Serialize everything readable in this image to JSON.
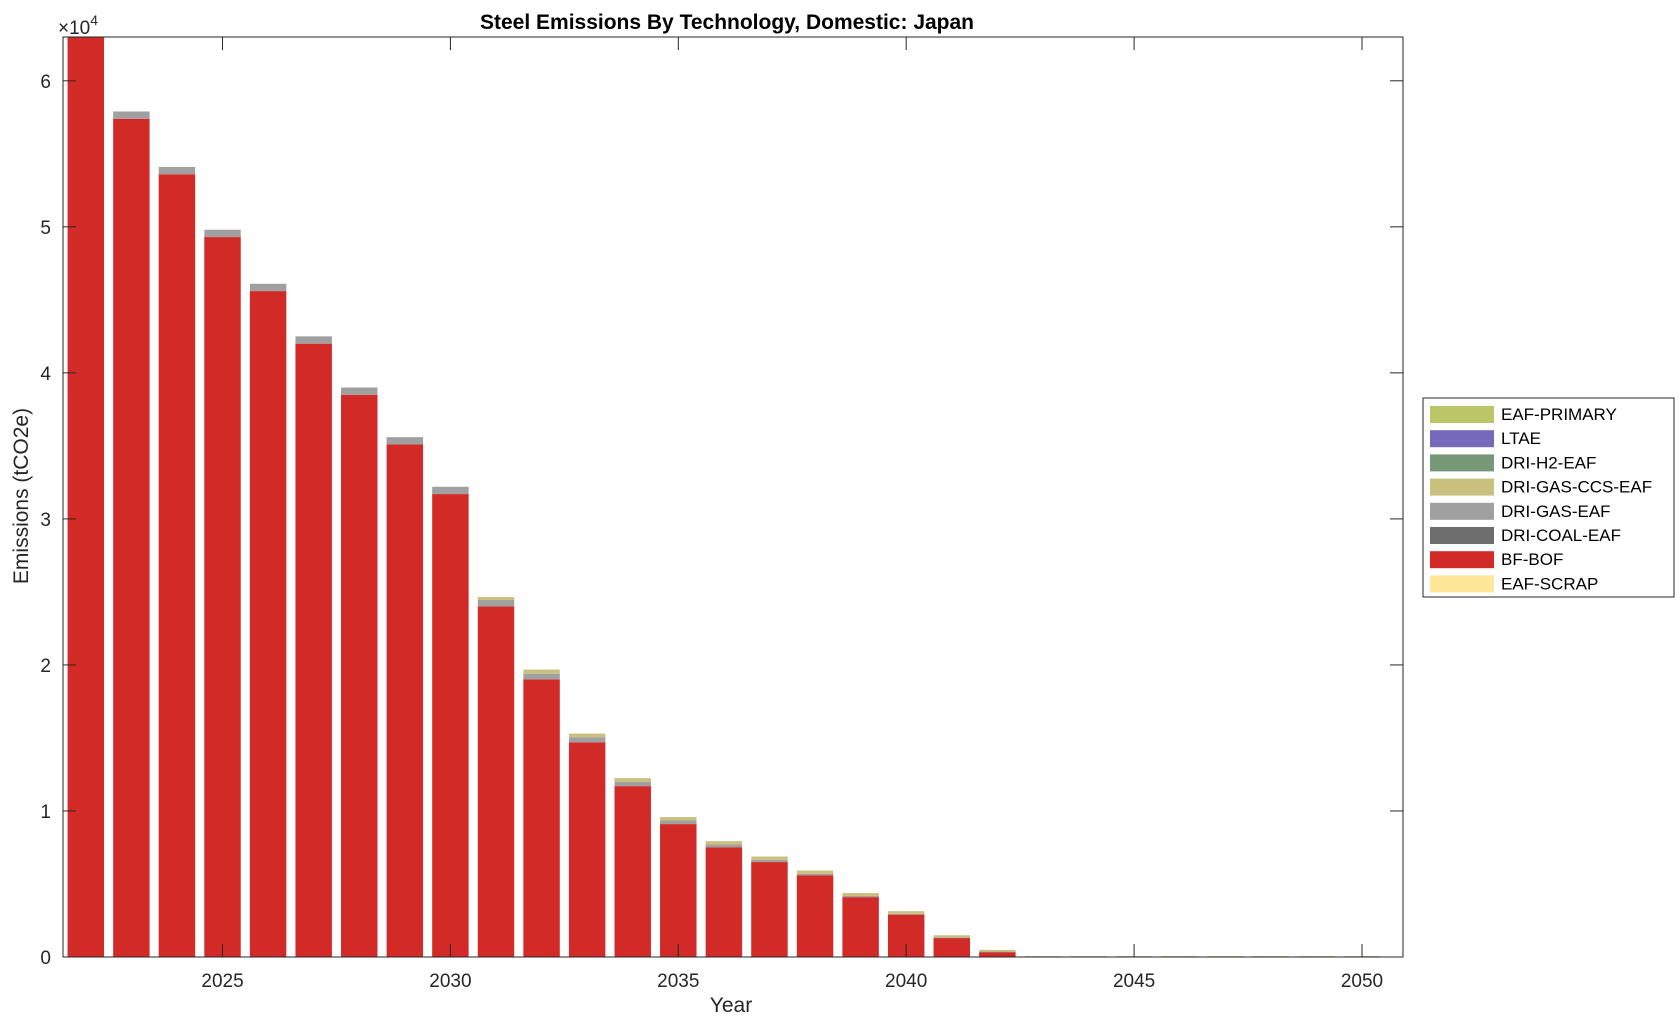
{
  "chart_data": {
    "type": "bar",
    "stacked": true,
    "title": "Steel Emissions By Technology, Domestic: Japan",
    "xlabel": "Year",
    "ylabel": "Emissions (tCO2e)",
    "y_exponent_label": "×10",
    "y_exponent_power": "4",
    "xlim": [
      2021.5,
      2050.9
    ],
    "ylim": [
      0,
      63000
    ],
    "x_ticks": [
      2025,
      2030,
      2035,
      2040,
      2045,
      2050
    ],
    "y_ticks": [
      0,
      10000,
      20000,
      30000,
      40000,
      50000,
      60000
    ],
    "y_tick_labels": [
      "0",
      "1",
      "2",
      "3",
      "4",
      "5",
      "6"
    ],
    "grid": false,
    "legend_position": "outside-right",
    "categories": [
      2022,
      2023,
      2024,
      2025,
      2026,
      2027,
      2028,
      2029,
      2030,
      2031,
      2032,
      2033,
      2034,
      2035,
      2036,
      2037,
      2038,
      2039,
      2040,
      2041,
      2042,
      2043,
      2044,
      2045,
      2046,
      2047,
      2048,
      2049,
      2050
    ],
    "series": [
      {
        "name": "EAF-SCRAP",
        "color": "#FFE699",
        "values": [
          0,
          0,
          0,
          0,
          0,
          0,
          0,
          0,
          0,
          0,
          0,
          0,
          0,
          0,
          0,
          0,
          0,
          0,
          0,
          0,
          0,
          0,
          0,
          0,
          0,
          0,
          0,
          0,
          0
        ]
      },
      {
        "name": "BF-BOF",
        "color": "#D22A26",
        "values": [
          63000,
          57400,
          53600,
          49300,
          45600,
          42000,
          38500,
          35100,
          31700,
          24000,
          19000,
          14700,
          11700,
          9100,
          7500,
          6500,
          5600,
          4100,
          2900,
          1300,
          350,
          0,
          0,
          0,
          0,
          0,
          0,
          0,
          0
        ]
      },
      {
        "name": "DRI-COAL-EAF",
        "color": "#6E6E6E",
        "values": [
          0,
          0,
          0,
          0,
          0,
          0,
          0,
          0,
          0,
          0,
          0,
          0,
          0,
          0,
          0,
          0,
          0,
          0,
          0,
          0,
          0,
          0,
          0,
          0,
          0,
          0,
          0,
          0,
          0
        ]
      },
      {
        "name": "DRI-GAS-EAF",
        "color": "#A0A0A0",
        "values": [
          0,
          500,
          500,
          500,
          500,
          500,
          500,
          500,
          500,
          450,
          400,
          350,
          300,
          250,
          200,
          150,
          100,
          80,
          60,
          40,
          20,
          0,
          0,
          0,
          0,
          0,
          0,
          0,
          0
        ]
      },
      {
        "name": "DRI-GAS-CCS-EAF",
        "color": "#C9C07E",
        "values": [
          0,
          0,
          0,
          0,
          0,
          0,
          0,
          0,
          0,
          200,
          280,
          250,
          250,
          230,
          230,
          230,
          220,
          200,
          180,
          150,
          120,
          60,
          60,
          60,
          60,
          60,
          60,
          60,
          60
        ]
      },
      {
        "name": "DRI-H2-EAF",
        "color": "#769877",
        "values": [
          0,
          0,
          0,
          0,
          0,
          0,
          0,
          0,
          0,
          0,
          0,
          0,
          0,
          0,
          0,
          0,
          0,
          0,
          0,
          0,
          0,
          0,
          0,
          0,
          0,
          0,
          0,
          0,
          0
        ]
      },
      {
        "name": "LTAE",
        "color": "#7669BC",
        "values": [
          0,
          0,
          0,
          0,
          0,
          0,
          0,
          0,
          0,
          0,
          0,
          0,
          0,
          0,
          0,
          0,
          0,
          0,
          0,
          0,
          0,
          0,
          0,
          0,
          0,
          0,
          0,
          0,
          0
        ]
      },
      {
        "name": "EAF-PRIMARY",
        "color": "#BAC668",
        "values": [
          0,
          0,
          0,
          0,
          0,
          0,
          0,
          0,
          0,
          0,
          0,
          0,
          0,
          0,
          0,
          0,
          0,
          0,
          0,
          0,
          0,
          0,
          0,
          0,
          0,
          0,
          0,
          0,
          0
        ]
      }
    ],
    "legend_order": [
      "EAF-PRIMARY",
      "LTAE",
      "DRI-H2-EAF",
      "DRI-GAS-CCS-EAF",
      "DRI-GAS-EAF",
      "DRI-COAL-EAF",
      "BF-BOF",
      "EAF-SCRAP"
    ]
  }
}
